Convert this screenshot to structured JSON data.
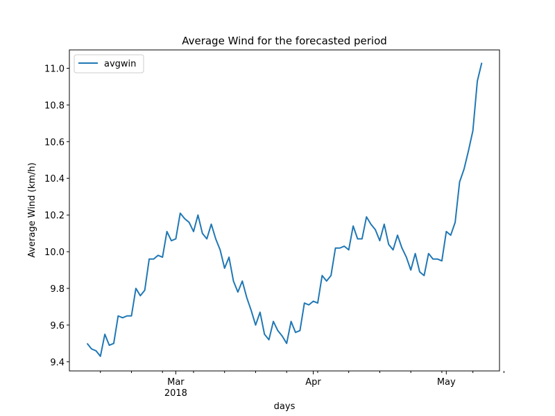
{
  "chart_data": {
    "type": "line",
    "title": "Average Wind for the forecasted period",
    "xlabel": "days",
    "ylabel": "Average Wind (km/h)",
    "x_start": "2018-02-09",
    "x_end": "2018-05-10",
    "xlim": [
      "2018-02-05",
      "2018-05-13"
    ],
    "ylim": [
      9.35,
      11.1
    ],
    "yticks": [
      9.4,
      9.6,
      9.8,
      10.0,
      10.2,
      10.4,
      10.6,
      10.8,
      11.0
    ],
    "ytick_labels": [
      "9.4",
      "9.6",
      "9.8",
      "10.0",
      "10.2",
      "10.4",
      "10.6",
      "10.8",
      "11.0"
    ],
    "xticks_major": [
      {
        "date": "2018-03-01",
        "label": "Mar",
        "sublabel": "2018"
      },
      {
        "date": "2018-04-01",
        "label": "Apr",
        "sublabel": ""
      },
      {
        "date": "2018-05-01",
        "label": "May",
        "sublabel": ""
      }
    ],
    "xticks_minor": [
      "2018-02-12",
      "2018-02-19",
      "2018-02-26",
      "2018-03-05",
      "2018-03-12",
      "2018-03-19",
      "2018-03-26",
      "2018-04-02",
      "2018-04-09",
      "2018-04-16",
      "2018-04-23",
      "2018-04-30",
      "2018-05-07",
      "2018-05-14"
    ],
    "legend_position": "top-left",
    "grid": false,
    "series": [
      {
        "name": "avgwin",
        "color": "#1f77b4",
        "values": [
          9.5,
          9.47,
          9.46,
          9.43,
          9.55,
          9.49,
          9.5,
          9.65,
          9.64,
          9.65,
          9.65,
          9.8,
          9.76,
          9.79,
          9.96,
          9.96,
          9.98,
          9.97,
          10.11,
          10.06,
          10.07,
          10.21,
          10.18,
          10.16,
          10.11,
          10.2,
          10.1,
          10.07,
          10.15,
          10.07,
          10.01,
          9.91,
          9.97,
          9.84,
          9.78,
          9.84,
          9.75,
          9.68,
          9.6,
          9.67,
          9.55,
          9.52,
          9.62,
          9.57,
          9.54,
          9.5,
          9.62,
          9.56,
          9.57,
          9.72,
          9.71,
          9.73,
          9.72,
          9.87,
          9.84,
          9.87,
          10.02,
          10.02,
          10.03,
          10.01,
          10.14,
          10.07,
          10.07,
          10.19,
          10.15,
          10.12,
          10.06,
          10.15,
          10.04,
          10.01,
          10.09,
          10.02,
          9.97,
          9.9,
          9.99,
          9.89,
          9.87,
          9.99,
          9.96,
          9.96,
          9.95,
          10.11,
          10.09,
          10.16,
          10.38,
          10.45,
          10.55,
          10.66,
          10.93,
          11.03
        ]
      }
    ]
  }
}
